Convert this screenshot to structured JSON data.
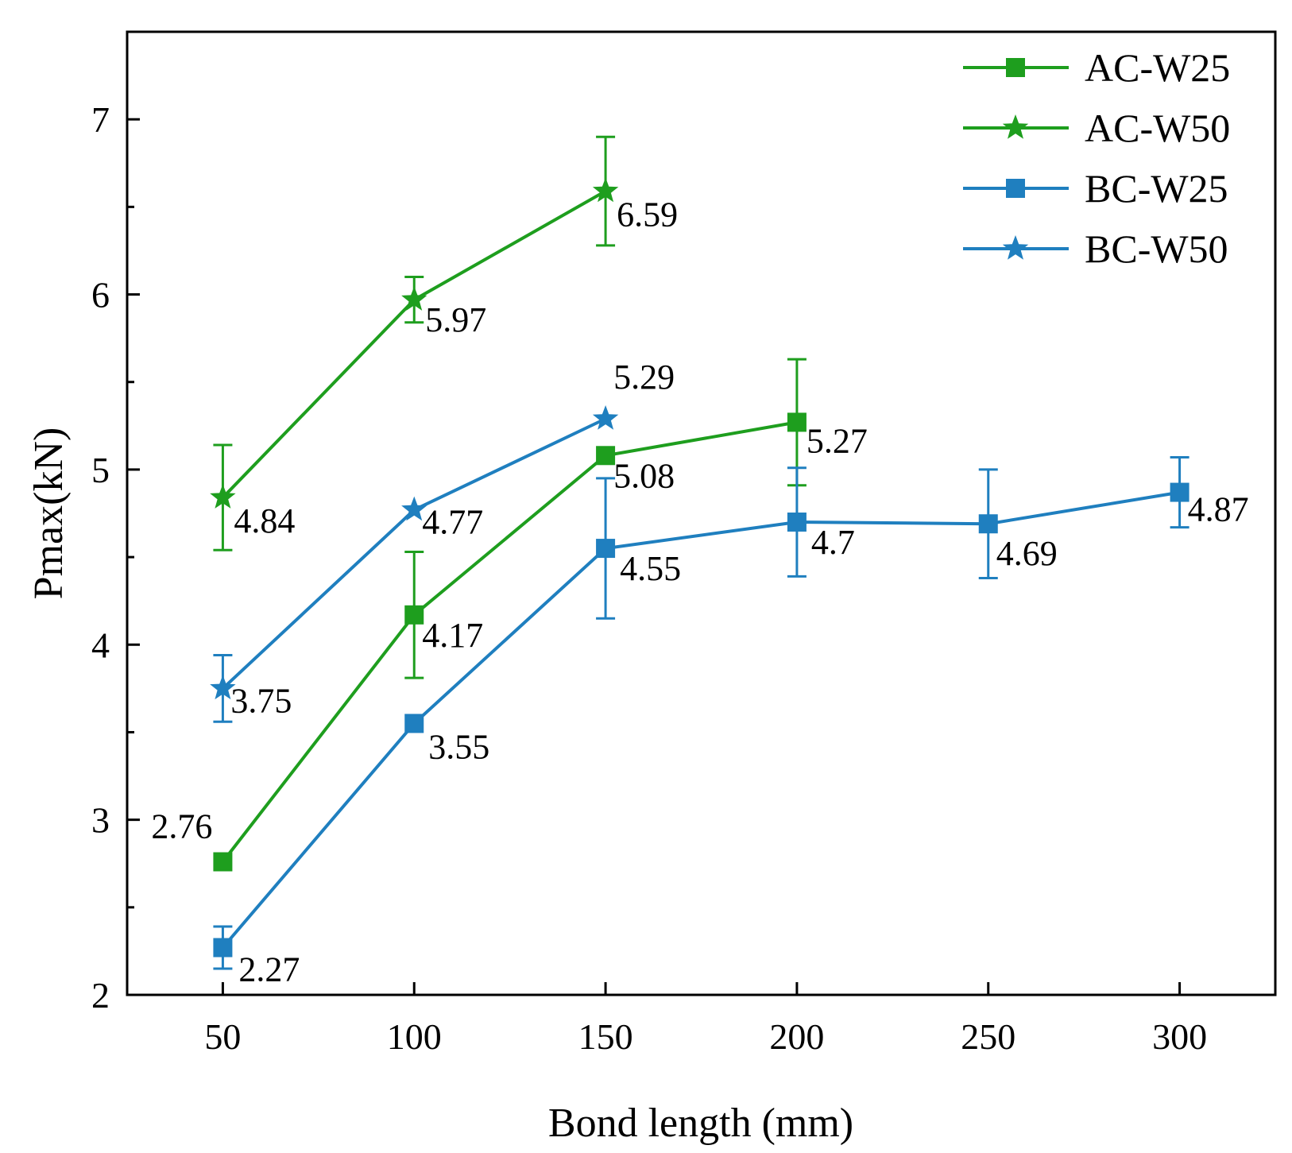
{
  "chart_data": {
    "type": "line",
    "xlabel": "Bond length (mm)",
    "ylabel": "Pmax(kN)",
    "xlim": [
      25,
      325
    ],
    "ylim": [
      2,
      7.5
    ],
    "x_ticks": [
      50,
      100,
      150,
      200,
      250,
      300
    ],
    "x_tick_labels": [
      "50",
      "100",
      "150",
      "200",
      "250",
      "300"
    ],
    "y_ticks": [
      2,
      3,
      4,
      5,
      6,
      7
    ],
    "y_tick_labels": [
      "2",
      "3",
      "4",
      "5",
      "6",
      "7"
    ],
    "y_minor_ticks": [
      2.5,
      3.5,
      4.5,
      5.5,
      6.5
    ],
    "grid": false,
    "legend_position": "top-right",
    "series": [
      {
        "name": "AC-W25",
        "color": "#1e9e1e",
        "marker": "square",
        "x": [
          50,
          100,
          150,
          200
        ],
        "y": [
          2.76,
          4.17,
          5.08,
          5.27
        ],
        "error": [
          0,
          0.36,
          0,
          0.36
        ],
        "labels": [
          "2.76",
          "4.17",
          "5.08",
          "5.27"
        ]
      },
      {
        "name": "AC-W50",
        "color": "#1e9e1e",
        "marker": "star",
        "x": [
          50,
          100,
          150
        ],
        "y": [
          4.84,
          5.97,
          6.59
        ],
        "error": [
          0.3,
          0.13,
          0.31
        ],
        "labels": [
          "4.84",
          "5.97",
          "6.59"
        ]
      },
      {
        "name": "BC-W25",
        "color": "#1f7fbf",
        "marker": "square",
        "x": [
          50,
          100,
          150,
          200,
          250,
          300
        ],
        "y": [
          2.27,
          3.55,
          4.55,
          4.7,
          4.69,
          4.87
        ],
        "error": [
          0.12,
          0,
          0.4,
          0.31,
          0.31,
          0.2
        ],
        "labels": [
          "2.27",
          "3.55",
          "4.55",
          "4.7",
          "4.69",
          "4.87"
        ]
      },
      {
        "name": "BC-W50",
        "color": "#1f7fbf",
        "marker": "star",
        "x": [
          50,
          100,
          150
        ],
        "y": [
          3.75,
          4.77,
          5.29
        ],
        "error": [
          0.19,
          0,
          0
        ],
        "labels": [
          "3.75",
          "4.77",
          "5.29"
        ]
      }
    ]
  }
}
